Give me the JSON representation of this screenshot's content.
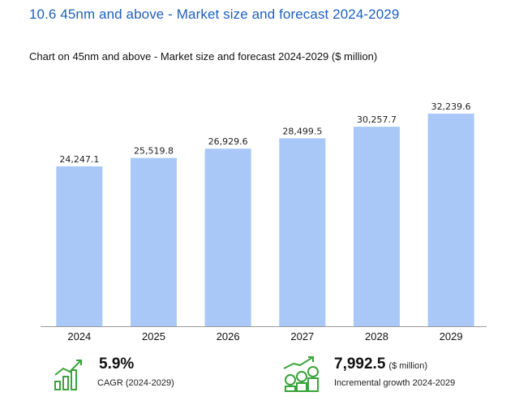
{
  "header": {
    "section_title": "10.6  45nm and above - Market size and forecast 2024-2029",
    "chart_subtitle": "Chart on 45nm and above - Market size and forecast 2024-2029 ($ million)"
  },
  "chart_data": {
    "type": "bar",
    "title": "Chart on 45nm and above - Market size and forecast 2024-2029 ($ million)",
    "categories": [
      "2024",
      "2025",
      "2026",
      "2027",
      "2028",
      "2029"
    ],
    "values": [
      24247.1,
      25519.8,
      26929.6,
      28499.5,
      30257.7,
      32239.6
    ],
    "value_labels": [
      "24,247.1",
      "25,519.8",
      "26,929.6",
      "28,499.5",
      "30,257.7",
      "32,239.6"
    ],
    "xlabel": "",
    "ylabel": "$ million",
    "ylim": [
      0,
      35000
    ],
    "grid": false,
    "bar_color": "#a9c8f7"
  },
  "kpis": {
    "cagr": {
      "value": "5.9%",
      "caption": "CAGR (2024-2029)",
      "icon": "growth-chart-icon"
    },
    "incremental": {
      "value": "7,992.5",
      "unit": "($ million)",
      "caption": "Incremental growth 2024-2029",
      "icon": "money-stack-icon"
    }
  },
  "colors": {
    "title": "#1f5fbf",
    "bar": "#a9c8f7",
    "icon": "#3aa33a"
  }
}
